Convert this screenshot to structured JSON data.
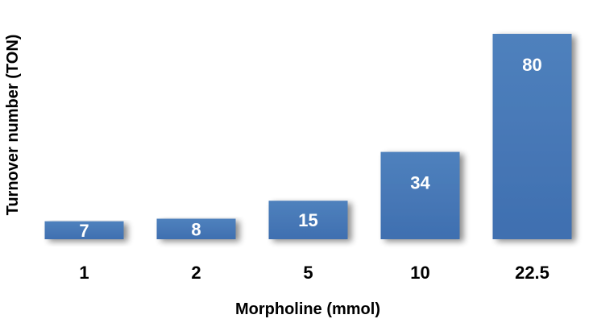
{
  "chart_data": {
    "type": "bar",
    "title": "",
    "xlabel": "Morpholine (mmol)",
    "ylabel": "Turnover number (TON)",
    "categories": [
      "1",
      "2",
      "5",
      "10",
      "22.5"
    ],
    "values": [
      7,
      8,
      15,
      34,
      80
    ],
    "data_labels": [
      "7",
      "8",
      "15",
      "34",
      "80"
    ],
    "ylim": [
      0,
      80
    ],
    "grid": false,
    "legend": "none",
    "bar_color": "#4f81bd"
  }
}
